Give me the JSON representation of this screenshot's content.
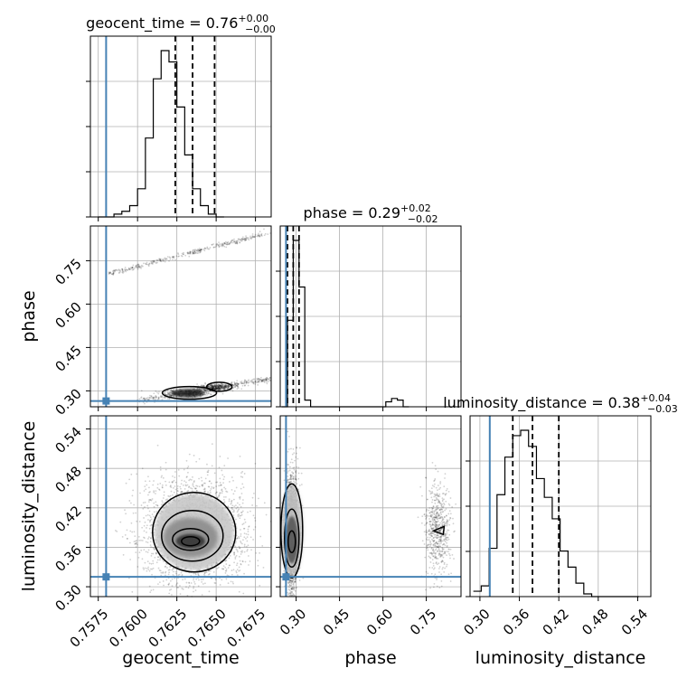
{
  "chart_data": {
    "type": "corner",
    "parameters": [
      "geocent_time",
      "phase",
      "luminosity_distance"
    ],
    "truth": {
      "geocent_time": 0.758,
      "phase": 0.265,
      "luminosity_distance": 0.315
    },
    "truth_color": "#4682b4",
    "axes": {
      "geocent_time": {
        "range": [
          0.757,
          0.7685
        ],
        "ticks": [
          0.7575,
          0.76,
          0.7625,
          0.765,
          0.7675
        ],
        "tick_labels": [
          "0.7575",
          "0.7600",
          "0.7625",
          "0.7650",
          "0.7675"
        ]
      },
      "phase": {
        "range": [
          0.245,
          0.87
        ],
        "ticks": [
          0.3,
          0.45,
          0.6,
          0.75
        ],
        "tick_labels": [
          "0.30",
          "0.45",
          "0.60",
          "0.75"
        ]
      },
      "luminosity_distance": {
        "range": [
          0.285,
          0.56
        ],
        "ticks": [
          0.3,
          0.36,
          0.42,
          0.48,
          0.54
        ],
        "tick_labels": [
          "0.30",
          "0.36",
          "0.42",
          "0.48",
          "0.54"
        ]
      }
    },
    "titles": [
      {
        "param": "geocent_time",
        "text": "geocent_time = 0.76",
        "plus": "+0.00",
        "minus": "−0.00"
      },
      {
        "param": "phase",
        "text": "phase = 0.29",
        "plus": "+0.02",
        "minus": "−0.02"
      },
      {
        "param": "luminosity_distance",
        "text": "luminosity_distance = 0.38",
        "plus": "+0.04",
        "minus": "−0.03"
      }
    ],
    "axis_labels": {
      "x": [
        "geocent_time",
        "phase",
        "luminosity_distance"
      ],
      "y": [
        "phase",
        "luminosity_distance"
      ]
    },
    "histograms": {
      "geocent_time": {
        "x_start": 0.7575,
        "bin_width": 0.0005,
        "counts": [
          0,
          0,
          1,
          2,
          4,
          10,
          28,
          49,
          59,
          55,
          39,
          22,
          10,
          4,
          1,
          0
        ],
        "quantiles": [
          0.7624,
          0.7635,
          0.7649
        ]
      },
      "phase": {
        "x_start": 0.25,
        "bin_width": 0.02,
        "counts": [
          0,
          52,
          100,
          72,
          4,
          0,
          0,
          0,
          0,
          0,
          0,
          0,
          0,
          0,
          0,
          0,
          0,
          0,
          3,
          5,
          4,
          0
        ],
        "quantiles": [
          0.27,
          0.29,
          0.31
        ]
      },
      "luminosity_distance": {
        "x_start": 0.29,
        "bin_width": 0.012,
        "counts": [
          2,
          4,
          18,
          38,
          52,
          60,
          62,
          56,
          44,
          37,
          29,
          17,
          11,
          5,
          1,
          0,
          0,
          0,
          0,
          0,
          0
        ],
        "quantiles": [
          0.35,
          0.38,
          0.42
        ]
      }
    },
    "grid": true
  }
}
